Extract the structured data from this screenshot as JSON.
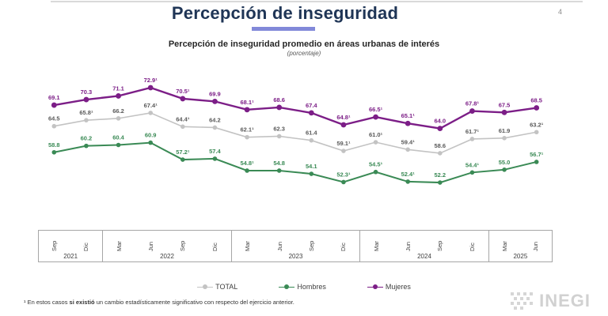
{
  "page": {
    "number": "4"
  },
  "header": {
    "title": "Percepción de inseguridad"
  },
  "subtitle": {
    "line1": "Percepción de inseguridad promedio en áreas urbanas de interés",
    "line2": "(porcentaje)"
  },
  "chart_data": {
    "type": "line",
    "title": "Percepción de inseguridad promedio en áreas urbanas de interés",
    "xlabel": "",
    "ylabel": "",
    "unit": "porcentaje",
    "ylim": [
      50,
      75
    ],
    "grid": false,
    "legend_position": "bottom",
    "x": [
      "Sep 2021",
      "Dic 2021",
      "Mar 2022",
      "Jun 2022",
      "Sep 2022",
      "Dic 2022",
      "Mar 2023",
      "Jun 2023",
      "Sep 2023",
      "Dic 2023",
      "Mar 2024",
      "Jun 2024",
      "Sep 2024",
      "Dic 2024",
      "Mar 2025",
      "Jun 2025"
    ],
    "x_groups": [
      {
        "year": "2021",
        "months": [
          "Sep",
          "Dic"
        ]
      },
      {
        "year": "2022",
        "months": [
          "Mar",
          "Jun",
          "Sep",
          "Dic"
        ]
      },
      {
        "year": "2023",
        "months": [
          "Mar",
          "Jun",
          "Sep",
          "Dic"
        ]
      },
      {
        "year": "2024",
        "months": [
          "Mar",
          "Jun",
          "Sep",
          "Dic"
        ]
      },
      {
        "year": "2025",
        "months": [
          "Mar",
          "Jun"
        ]
      }
    ],
    "series": [
      {
        "name": "TOTAL",
        "color": "#c3c3c3",
        "label_color": "#595959",
        "line_width": 1.6,
        "values": [
          64.5,
          65.8,
          66.2,
          67.4,
          64.4,
          64.2,
          62.1,
          62.3,
          61.4,
          59.1,
          61.0,
          59.4,
          58.6,
          61.7,
          61.9,
          63.2
        ],
        "labels": [
          "64.5",
          "65.8¹",
          "66.2",
          "67.4¹",
          "64.4¹",
          "64.2",
          "62.1¹",
          "62.3",
          "61.4",
          "59.1¹",
          "61.0¹",
          "59.4¹",
          "58.6",
          "61.7¹",
          "61.9",
          "63.2¹"
        ]
      },
      {
        "name": "Hombres",
        "color": "#3a8a55",
        "label_color": "#3a8a55",
        "line_width": 2.0,
        "values": [
          58.8,
          60.2,
          60.4,
          60.9,
          57.2,
          57.4,
          54.8,
          54.8,
          54.1,
          52.3,
          54.5,
          52.4,
          52.2,
          54.4,
          55.0,
          56.7
        ],
        "labels": [
          "58.8",
          "60.2",
          "60.4",
          "60.9",
          "57.2¹",
          "57.4",
          "54.8¹",
          "54.8",
          "54.1",
          "52.3¹",
          "54.5¹",
          "52.4¹",
          "52.2",
          "54.4¹",
          "55.0",
          "56.7¹"
        ]
      },
      {
        "name": "Mujeres",
        "color": "#7c1e87",
        "label_color": "#7c1e87",
        "line_width": 2.4,
        "values": [
          69.1,
          70.3,
          71.1,
          72.9,
          70.5,
          69.9,
          68.1,
          68.6,
          67.4,
          64.8,
          66.5,
          65.1,
          64.0,
          67.8,
          67.5,
          68.5
        ],
        "labels": [
          "69.1",
          "70.3",
          "71.1",
          "72.9¹",
          "70.5¹",
          "69.9",
          "68.1¹",
          "68.6",
          "67.4",
          "64.8¹",
          "66.5¹",
          "65.1¹",
          "64.0",
          "67.8¹",
          "67.5",
          "68.5"
        ]
      }
    ]
  },
  "legend": {
    "items": [
      {
        "label": "TOTAL",
        "color": "#c3c3c3"
      },
      {
        "label": "Hombres",
        "color": "#3a8a55"
      },
      {
        "label": "Mujeres",
        "color": "#7c1e87"
      }
    ]
  },
  "footnote": {
    "marker": "¹",
    "pre": " En estos casos ",
    "bold": "si existió",
    "post": " un cambio estadísticamente significativo con respecto del ejercicio anterior."
  },
  "logo": {
    "text": "INEGI"
  }
}
